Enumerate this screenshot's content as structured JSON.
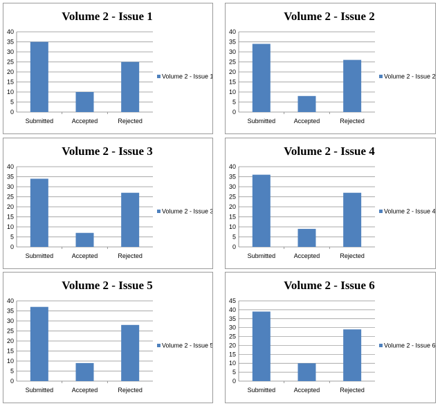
{
  "colors": {
    "bar": "#4f81bd",
    "grid": "#8c8c8c"
  },
  "chart_data": [
    {
      "type": "bar",
      "title": "Volume 2 - Issue 1",
      "categories": [
        "Submitted",
        "Accepted",
        "Rejected"
      ],
      "series": [
        {
          "name": "Volume 2 - Issue 1",
          "values": [
            35,
            10,
            25
          ]
        }
      ],
      "ylim": [
        0,
        40
      ],
      "yticks": [
        0,
        5,
        10,
        15,
        20,
        25,
        30,
        35,
        40
      ],
      "grid": true,
      "legend": "right"
    },
    {
      "type": "bar",
      "title": "Volume 2 - Issue 2",
      "categories": [
        "Submitted",
        "Accepted",
        "Rejected"
      ],
      "series": [
        {
          "name": "Volume 2 - Issue 2",
          "values": [
            34,
            8,
            26
          ]
        }
      ],
      "ylim": [
        0,
        40
      ],
      "yticks": [
        0,
        5,
        10,
        15,
        20,
        25,
        30,
        35,
        40
      ],
      "grid": true,
      "legend": "right"
    },
    {
      "type": "bar",
      "title": "Volume 2 - Issue 3",
      "categories": [
        "Submitted",
        "Accepted",
        "Rejected"
      ],
      "series": [
        {
          "name": "Volume 2 - Issue 3",
          "values": [
            34,
            7,
            27
          ]
        }
      ],
      "ylim": [
        0,
        40
      ],
      "yticks": [
        0,
        5,
        10,
        15,
        20,
        25,
        30,
        35,
        40
      ],
      "grid": true,
      "legend": "right"
    },
    {
      "type": "bar",
      "title": "Volume 2 - Issue 4",
      "categories": [
        "Submitted",
        "Accepted",
        "Rejected"
      ],
      "series": [
        {
          "name": "Volume 2 - Issue 4",
          "values": [
            36,
            9,
            27
          ]
        }
      ],
      "ylim": [
        0,
        40
      ],
      "yticks": [
        0,
        5,
        10,
        15,
        20,
        25,
        30,
        35,
        40
      ],
      "grid": true,
      "legend": "right"
    },
    {
      "type": "bar",
      "title": "Volume 2 - Issue 5",
      "categories": [
        "Submitted",
        "Accepted",
        "Rejected"
      ],
      "series": [
        {
          "name": "Volume 2 - Issue 5",
          "values": [
            37,
            9,
            28
          ]
        }
      ],
      "ylim": [
        0,
        40
      ],
      "yticks": [
        0,
        5,
        10,
        15,
        20,
        25,
        30,
        35,
        40
      ],
      "grid": true,
      "legend": "right"
    },
    {
      "type": "bar",
      "title": "Volume 2 - Issue 6",
      "categories": [
        "Submitted",
        "Accepted",
        "Rejected"
      ],
      "series": [
        {
          "name": "Volume 2 - Issue 6",
          "values": [
            39,
            10,
            29
          ]
        }
      ],
      "ylim": [
        0,
        45
      ],
      "yticks": [
        0,
        5,
        10,
        15,
        20,
        25,
        30,
        35,
        40,
        45
      ],
      "grid": true,
      "legend": "right"
    }
  ]
}
